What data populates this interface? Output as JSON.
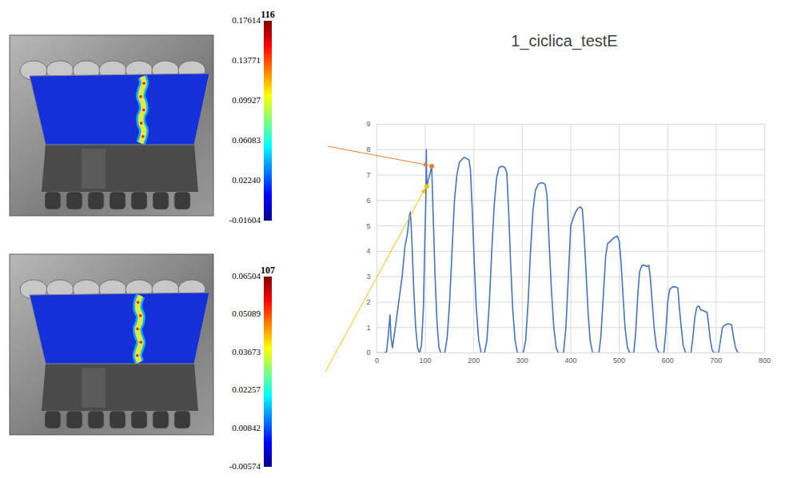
{
  "chart_data": [
    {
      "type": "line",
      "title": "1_ciclica_testE",
      "x": [
        0,
        15,
        20,
        24,
        27,
        29,
        32,
        38,
        45,
        52,
        58,
        63,
        67,
        69,
        72,
        76,
        80,
        84,
        88,
        92,
        96,
        99,
        101,
        102,
        103,
        106,
        110,
        113,
        116,
        120,
        124,
        128,
        132,
        140,
        145,
        150,
        155,
        160,
        165,
        170,
        175,
        180,
        185,
        190,
        193,
        197,
        201,
        205,
        210,
        215,
        222,
        227,
        232,
        237,
        242,
        247,
        252,
        258,
        264,
        268,
        272,
        276,
        280,
        285,
        290,
        302,
        307,
        312,
        317,
        322,
        327,
        333,
        340,
        347,
        351,
        355,
        360,
        365,
        370,
        374,
        385,
        390,
        395,
        400,
        405,
        410,
        415,
        420,
        424,
        428,
        432,
        436,
        440,
        445,
        458,
        462,
        467,
        472,
        476,
        482,
        490,
        496,
        500,
        504,
        508,
        512,
        517,
        522,
        530,
        534,
        538,
        542,
        547,
        553,
        557,
        561,
        564,
        568,
        572,
        577,
        582,
        592,
        596,
        600,
        604,
        610,
        617,
        621,
        624,
        628,
        632,
        637,
        648,
        652,
        656,
        660,
        664,
        668,
        675,
        681,
        684,
        688,
        692,
        696,
        705,
        709,
        713,
        718,
        725,
        732,
        736,
        740,
        745,
        750
      ],
      "series": [
        {
          "color": "#4472c4",
          "values": [
            0,
            0,
            0.05,
            0.8,
            1.5,
            0.6,
            0.2,
            1.0,
            2.0,
            3.0,
            4.2,
            4.7,
            5.4,
            5.55,
            4.5,
            2.5,
            1.0,
            0.2,
            0,
            0.3,
            1.8,
            4.5,
            6.0,
            8.0,
            6.5,
            6.8,
            7.1,
            7.35,
            5.5,
            3.0,
            1.2,
            0.2,
            0,
            0,
            0.6,
            2.0,
            4.0,
            6.0,
            7.0,
            7.5,
            7.6,
            7.7,
            7.65,
            7.6,
            7.2,
            5.5,
            3.5,
            1.8,
            0.5,
            0,
            0,
            0.5,
            2.0,
            4.0,
            5.8,
            6.9,
            7.3,
            7.35,
            7.3,
            7.1,
            5.5,
            3.5,
            1.8,
            0.5,
            0,
            0,
            0.5,
            2.0,
            4.0,
            5.6,
            6.4,
            6.65,
            6.7,
            6.65,
            6.2,
            4.5,
            2.5,
            1.0,
            0.2,
            0,
            0,
            1.0,
            3.0,
            5.0,
            5.3,
            5.55,
            5.7,
            5.75,
            5.65,
            4.5,
            3.0,
            1.5,
            0.5,
            0,
            0,
            0.6,
            2.2,
            3.8,
            4.3,
            4.4,
            4.55,
            4.6,
            4.4,
            3.5,
            2.2,
            1.0,
            0.2,
            0,
            0,
            0.8,
            2.2,
            3.2,
            3.45,
            3.45,
            3.4,
            3.45,
            3.0,
            2.0,
            1.0,
            0.2,
            0,
            0,
            0.8,
            2.0,
            2.5,
            2.6,
            2.6,
            2.55,
            1.8,
            1.0,
            0.3,
            0,
            0,
            0.6,
            1.4,
            1.8,
            1.85,
            1.7,
            1.65,
            1.6,
            1.2,
            0.5,
            0.1,
            0,
            0,
            0.5,
            1.0,
            1.1,
            1.15,
            1.1,
            0.6,
            0.2,
            0,
            0
          ]
        }
      ],
      "xlim": [
        0,
        800
      ],
      "xticks": [
        0,
        100,
        200,
        300,
        400,
        500,
        600,
        700,
        800
      ],
      "ylim": [
        0,
        9
      ],
      "yticks": [
        0,
        1,
        2,
        3,
        4,
        5,
        6,
        7,
        8,
        9
      ],
      "grid": true
    },
    {
      "type": "image",
      "colorbar_title": "116",
      "colorbar_range": [
        -0.01604,
        0.17614
      ],
      "colorbar_ticks": [
        0.17614,
        0.13771,
        0.09927,
        0.06083,
        {
          "value": 0.0224,
          "label": "0.02240"
        },
        -0.01604
      ],
      "arrow_to": {
        "x": 113,
        "y": 7.35
      },
      "arrow_color": "#ed7d31"
    },
    {
      "type": "image",
      "colorbar_title": "107",
      "colorbar_range": [
        -0.00574,
        0.06504
      ],
      "colorbar_ticks": [
        0.06504,
        0.05089,
        0.03673,
        0.02257,
        0.00842,
        -0.00574
      ],
      "arrow_to": {
        "x": 103,
        "y": 6.55
      },
      "arrow_color": "#ffc000"
    }
  ]
}
